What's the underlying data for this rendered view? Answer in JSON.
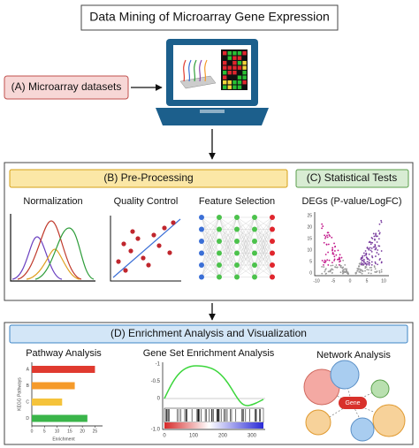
{
  "title": "Data Mining of Microarray Gene Expression",
  "step_a": {
    "label": "(A) Microarray datasets"
  },
  "step_b": {
    "label": "(B) Pre-Processing",
    "methods": [
      "Normalization",
      "Quality Control",
      "Feature Selection"
    ]
  },
  "step_c": {
    "label": "(C) Statistical Tests",
    "method": "DEGs (P-value/LogFC)",
    "volcano": {
      "xticks": [
        "-10",
        "-5",
        "0",
        "5",
        "10"
      ],
      "yticks": [
        "25",
        "20",
        "15",
        "10",
        "5",
        "0"
      ]
    }
  },
  "step_d": {
    "label": "(D) Enrichment Analysis and Visualization",
    "pathway": {
      "title": "Pathway Analysis",
      "categories": [
        "A",
        "B",
        "C",
        "D"
      ],
      "values": [
        25,
        17,
        12,
        22
      ],
      "colors": [
        "#e03a2f",
        "#f59a2a",
        "#f5c33b",
        "#3ab54a"
      ],
      "xlim": [
        0,
        28
      ],
      "xticks": [
        0,
        5,
        10,
        15,
        20,
        25
      ],
      "ylabel": "KEGG Pathways",
      "xlabel": "Enrichment"
    },
    "gsea": {
      "title": "Gene Set Enrichment Analysis",
      "yticks": [
        "-1",
        "-0.5",
        "0"
      ],
      "lower_tick": "-1.0",
      "xticks": [
        "0",
        "100",
        "200",
        "300"
      ]
    },
    "network": {
      "title": "Network Analysis",
      "hub": "Gene"
    }
  }
}
